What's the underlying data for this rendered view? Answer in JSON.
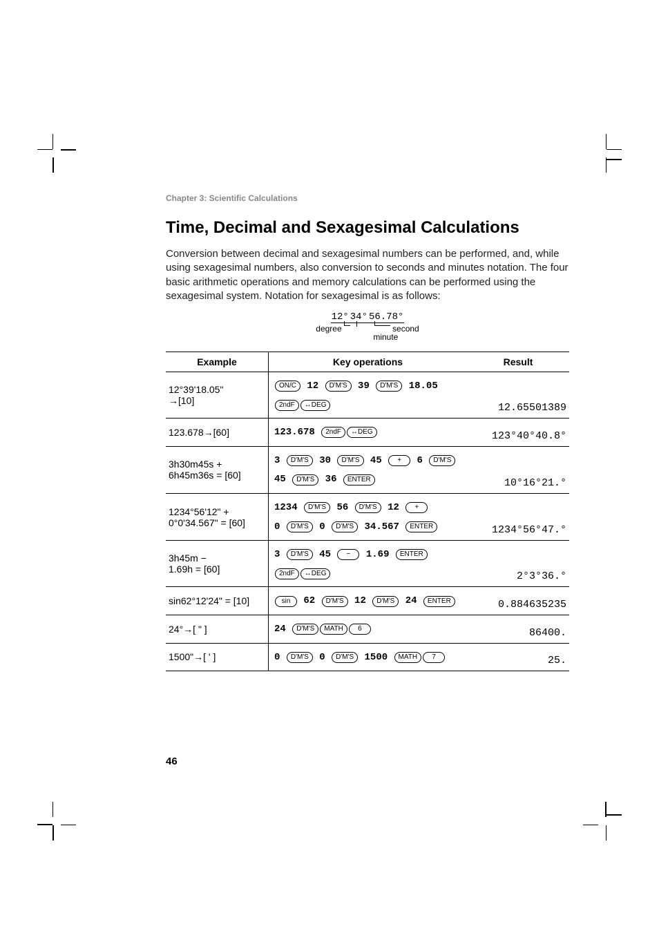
{
  "chapter": "Chapter 3: Scientific Calculations",
  "title": "Time, Decimal and Sexagesimal Calculations",
  "intro": "Conversion between decimal and sexagesimal numbers can be performed, and, while using sexagesimal numbers, also conversion to seconds and minutes notation. The four basic arithmetic operations and memory calculations can be performed using the sexagesimal system. Notation for sexagesimal is as follows:",
  "notation": {
    "value": "12°34°56.78°",
    "degree_label": "degree",
    "minute_label": "minute",
    "second_label": "second"
  },
  "headers": {
    "example": "Example",
    "keyops": "Key operations",
    "result": "Result"
  },
  "keys": {
    "onc": "ON/C",
    "dms": "D'M'S",
    "secf": "2ndF",
    "ddeg": "↔DEG",
    "plus": "+",
    "minus": "−",
    "enter": "ENTER",
    "sin": "sin",
    "math": "MATH",
    "k6": "6",
    "k7": "7"
  },
  "rows": [
    {
      "example_l1": "12°39'18.05\"",
      "example_l2": "→[10]",
      "ops": [
        [
          {
            "k": "onc"
          },
          {
            "t": "12"
          },
          {
            "k": "dms"
          },
          {
            "t": "39"
          },
          {
            "k": "dms"
          },
          {
            "t": "18.05"
          }
        ],
        [
          {
            "k": "secf"
          },
          {
            "k": "ddeg"
          }
        ]
      ],
      "result": "12.65501389"
    },
    {
      "example_l1": "123.678→[60]",
      "example_l2": "",
      "ops": [
        [
          {
            "t": "123.678"
          },
          {
            "k": "secf"
          },
          {
            "k": "ddeg"
          }
        ]
      ],
      "result": "123°40°40.8°"
    },
    {
      "example_l1": "3h30m45s +",
      "example_l2": "6h45m36s = [60]",
      "ops": [
        [
          {
            "t": "3"
          },
          {
            "k": "dms"
          },
          {
            "t": "30"
          },
          {
            "k": "dms"
          },
          {
            "t": "45"
          },
          {
            "k": "plus",
            "w": true
          },
          {
            "t": "6"
          },
          {
            "k": "dms"
          }
        ],
        [
          {
            "t": "45"
          },
          {
            "k": "dms"
          },
          {
            "t": "36"
          },
          {
            "k": "enter"
          }
        ]
      ],
      "result": "10°16°21.°"
    },
    {
      "example_l1": "1234°56'12\" +",
      "example_l2": "0°0'34.567\" = [60]",
      "ops": [
        [
          {
            "t": "1234"
          },
          {
            "k": "dms"
          },
          {
            "t": "56"
          },
          {
            "k": "dms"
          },
          {
            "t": "12"
          },
          {
            "k": "plus",
            "w": true
          }
        ],
        [
          {
            "t": "0"
          },
          {
            "k": "dms"
          },
          {
            "t": "0"
          },
          {
            "k": "dms"
          },
          {
            "t": "34.567"
          },
          {
            "k": "enter"
          }
        ]
      ],
      "result": "1234°56°47.°"
    },
    {
      "example_l1": "3h45m −",
      "example_l2": "1.69h = [60]",
      "ops": [
        [
          {
            "t": "3"
          },
          {
            "k": "dms"
          },
          {
            "t": "45"
          },
          {
            "k": "minus",
            "w": true
          },
          {
            "t": "1.69"
          },
          {
            "k": "enter"
          }
        ],
        [
          {
            "k": "secf"
          },
          {
            "k": "ddeg"
          }
        ]
      ],
      "result": "2°3°36.°"
    },
    {
      "example_l1": "sin62°12'24\" = [10]",
      "example_l2": "",
      "ops": [
        [
          {
            "k": "sin",
            "w": true
          },
          {
            "t": "62"
          },
          {
            "k": "dms"
          },
          {
            "t": "12"
          },
          {
            "k": "dms"
          },
          {
            "t": "24"
          },
          {
            "k": "enter"
          }
        ]
      ],
      "result": "0.884635235"
    },
    {
      "example_l1": "24°→[ \" ]",
      "example_l2": "",
      "ops": [
        [
          {
            "t": "24"
          },
          {
            "k": "dms"
          },
          {
            "k": "math"
          },
          {
            "k": "k6",
            "w": true
          }
        ]
      ],
      "result": "86400."
    },
    {
      "example_l1": "1500\"→[ ' ]",
      "example_l2": "",
      "ops": [
        [
          {
            "t": "0"
          },
          {
            "k": "dms"
          },
          {
            "t": "0"
          },
          {
            "k": "dms"
          },
          {
            "t": "1500"
          },
          {
            "k": "math"
          },
          {
            "k": "k7",
            "w": true
          }
        ]
      ],
      "result": "25."
    }
  ],
  "pagenum": "46"
}
